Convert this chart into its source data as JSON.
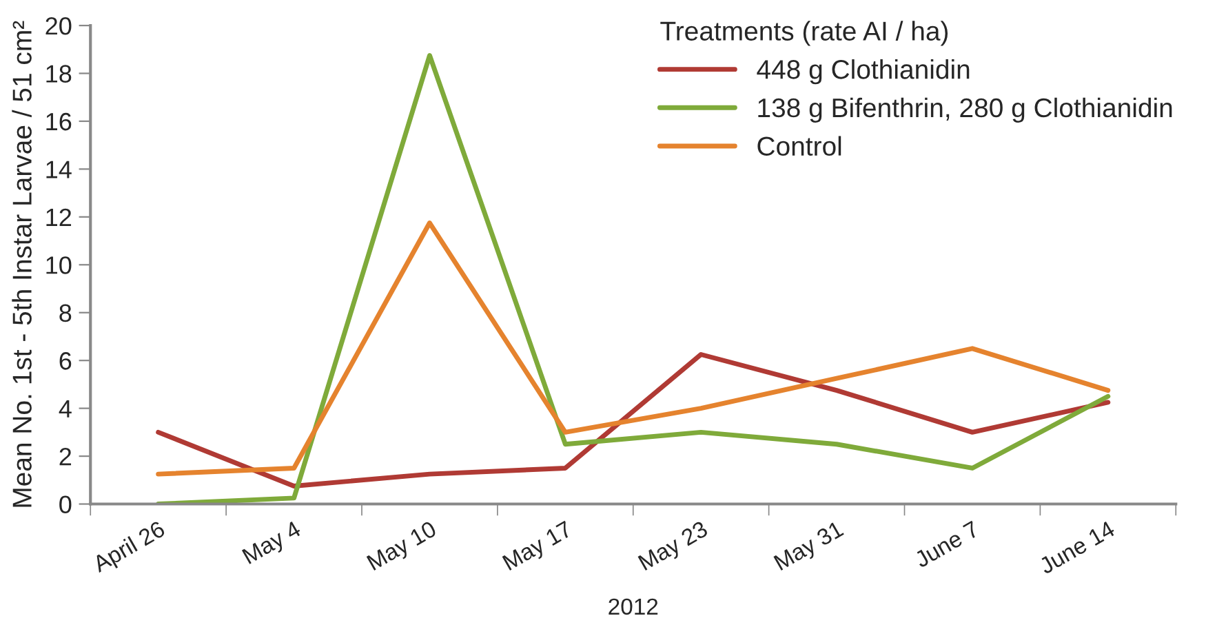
{
  "chart_data": {
    "type": "line",
    "xlabel": "2012",
    "ylabel": "Mean No. 1st - 5th Instar Larvae / 51 cm²",
    "legend_title": "Treatments (rate AI / ha)",
    "categories": [
      "April 26",
      "May 4",
      "May 10",
      "May 17",
      "May 23",
      "May 31",
      "June 7",
      "June 14"
    ],
    "series": [
      {
        "name": "448 g Clothianidin",
        "color": "#b03a34",
        "values": [
          3.0,
          0.75,
          1.25,
          1.5,
          6.25,
          4.75,
          3.0,
          4.25
        ]
      },
      {
        "name": "138 g Bifenthrin, 280 g Clothianidin",
        "color": "#7faa3a",
        "values": [
          0,
          0.25,
          18.75,
          2.5,
          3.0,
          2.5,
          1.5,
          4.5
        ]
      },
      {
        "name": "Control",
        "color": "#e5832e",
        "values": [
          1.25,
          1.5,
          11.75,
          3.0,
          4.0,
          5.25,
          6.5,
          4.75
        ]
      }
    ],
    "ylim": [
      0,
      20
    ],
    "yticks": [
      0,
      2,
      4,
      6,
      8,
      10,
      12,
      14,
      16,
      18,
      20
    ],
    "grid": false,
    "legend": "top right",
    "marker": "none",
    "line_style": "solid"
  }
}
